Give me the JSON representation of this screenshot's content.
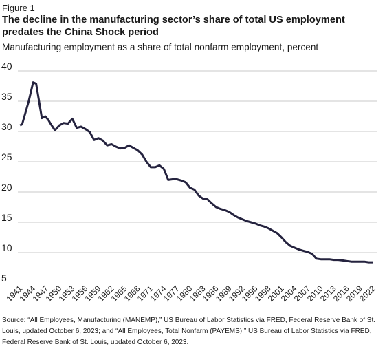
{
  "figure_label": "Figure 1",
  "title": "The decline in the manufacturing sector’s share of total US employment predates the China Shock period",
  "subtitle": "Manufacturing employment as a share of total nonfarm employment, percent",
  "source": {
    "prefix": "Source: “",
    "link1": "All Employees, Manufacturing  (MANEMP)",
    "mid1": ",” US Bureau of Labor Statistics via FRED, Federal Reserve Bank of St. Louis, updated October 6, 2023; and “",
    "link2": "All Employees, Total Nonfarm (PAYEMS)",
    "mid2": ",” US Bureau of Labor Statistics via FRED, Federal Reserve Bank of St. Louis, updated October 6, 2023."
  },
  "colors": {
    "line": "#25233f",
    "grid": "#c8c8c8"
  },
  "chart_data": {
    "type": "line",
    "ylim": [
      5,
      40
    ],
    "yticks": [
      5,
      10,
      15,
      20,
      25,
      30,
      35,
      40
    ],
    "xlim": [
      1940.5,
      2023
    ],
    "xticks": [
      "1941",
      "1944",
      "1947",
      "1950",
      "1953",
      "1956",
      "1959",
      "1962",
      "1965",
      "1968",
      "1971",
      "1974",
      "1977",
      "1980",
      "1983",
      "1986",
      "1989",
      "1992",
      "1995",
      "1998",
      "2001",
      "2004",
      "2007",
      "2010",
      "2013",
      "2016",
      "2019",
      "2022"
    ],
    "grid": "horizontal",
    "series": [
      {
        "points": [
          [
            1941,
            31.0
          ],
          [
            1941.5,
            31.2
          ],
          [
            1943,
            35.0
          ],
          [
            1944,
            38.1
          ],
          [
            1944.7,
            37.9
          ],
          [
            1946,
            32.2
          ],
          [
            1946.8,
            32.5
          ],
          [
            1947.5,
            31.9
          ],
          [
            1948,
            31.3
          ],
          [
            1949,
            30.2
          ],
          [
            1950,
            31.0
          ],
          [
            1951,
            31.4
          ],
          [
            1952,
            31.3
          ],
          [
            1953,
            32.1
          ],
          [
            1954,
            30.6
          ],
          [
            1955,
            30.8
          ],
          [
            1956,
            30.4
          ],
          [
            1957,
            29.9
          ],
          [
            1958,
            28.6
          ],
          [
            1959,
            28.9
          ],
          [
            1960,
            28.5
          ],
          [
            1961,
            27.7
          ],
          [
            1962,
            27.9
          ],
          [
            1963,
            27.5
          ],
          [
            1964,
            27.2
          ],
          [
            1965,
            27.3
          ],
          [
            1966,
            27.7
          ],
          [
            1967,
            27.3
          ],
          [
            1968,
            26.9
          ],
          [
            1969,
            26.2
          ],
          [
            1970,
            25.0
          ],
          [
            1971,
            24.1
          ],
          [
            1972,
            24.1
          ],
          [
            1973,
            24.4
          ],
          [
            1974,
            23.8
          ],
          [
            1975,
            22.0
          ],
          [
            1976,
            22.1
          ],
          [
            1977,
            22.1
          ],
          [
            1978,
            21.9
          ],
          [
            1979,
            21.6
          ],
          [
            1980,
            20.7
          ],
          [
            1981,
            20.4
          ],
          [
            1982,
            19.4
          ],
          [
            1983,
            18.9
          ],
          [
            1984,
            18.8
          ],
          [
            1985,
            18.1
          ],
          [
            1986,
            17.5
          ],
          [
            1987,
            17.2
          ],
          [
            1988,
            17.0
          ],
          [
            1989,
            16.7
          ],
          [
            1990,
            16.2
          ],
          [
            1991,
            15.8
          ],
          [
            1992,
            15.5
          ],
          [
            1993,
            15.2
          ],
          [
            1994,
            15.0
          ],
          [
            1995,
            14.8
          ],
          [
            1996,
            14.5
          ],
          [
            1997,
            14.3
          ],
          [
            1998,
            14.0
          ],
          [
            1999,
            13.6
          ],
          [
            2000,
            13.2
          ],
          [
            2001,
            12.5
          ],
          [
            2002,
            11.7
          ],
          [
            2003,
            11.1
          ],
          [
            2004,
            10.8
          ],
          [
            2005,
            10.5
          ],
          [
            2006,
            10.3
          ],
          [
            2007,
            10.1
          ],
          [
            2008,
            9.8
          ],
          [
            2009,
            9.0
          ],
          [
            2010,
            8.9
          ],
          [
            2011,
            8.9
          ],
          [
            2012,
            8.9
          ],
          [
            2013,
            8.8
          ],
          [
            2014,
            8.8
          ],
          [
            2015,
            8.7
          ],
          [
            2016,
            8.6
          ],
          [
            2017,
            8.5
          ],
          [
            2018,
            8.5
          ],
          [
            2019,
            8.5
          ],
          [
            2020,
            8.5
          ],
          [
            2021,
            8.4
          ],
          [
            2022,
            8.4
          ]
        ]
      }
    ]
  }
}
